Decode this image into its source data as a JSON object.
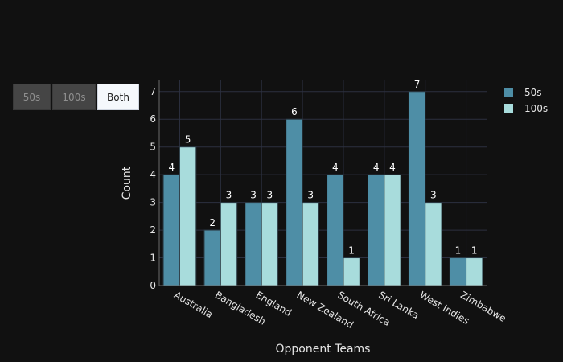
{
  "buttons": [
    {
      "label": "50s",
      "active": false
    },
    {
      "label": "100s",
      "active": false
    },
    {
      "label": "Both",
      "active": true
    }
  ],
  "colors": {
    "background": "#111111",
    "grid": "#2c3040",
    "series_50s": "#4e8ea6",
    "series_100s": "#a8dcdc",
    "bar_outline": "#2b3b45"
  },
  "chart_data": {
    "type": "bar",
    "title": "",
    "xlabel": "Opponent Teams",
    "ylabel": "Count",
    "categories": [
      "Australia",
      "Bangladesh",
      "England",
      "New Zealand",
      "South Africa",
      "Sri Lanka",
      "West Indies",
      "Zimbabwe"
    ],
    "series": [
      {
        "name": "50s",
        "values": [
          4,
          2,
          3,
          6,
          4,
          4,
          7,
          1
        ]
      },
      {
        "name": "100s",
        "values": [
          5,
          3,
          3,
          3,
          1,
          4,
          3,
          1
        ]
      }
    ],
    "ylim": [
      0,
      7.4
    ],
    "yticks": [
      0,
      1,
      2,
      3,
      4,
      5,
      6,
      7
    ],
    "grid": true,
    "legend": "top-right",
    "data_labels": true
  }
}
